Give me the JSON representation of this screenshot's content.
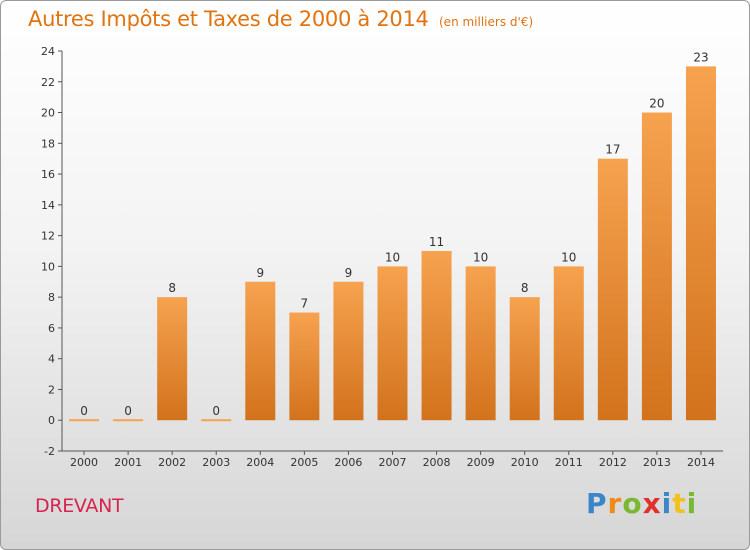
{
  "header": {
    "title": "Autres Impôts et Taxes de 2000 à 2014",
    "subtitle": "(en milliers d'€)"
  },
  "footer": {
    "commune": "DREVANT",
    "brand": [
      "P",
      "r",
      "o",
      "x",
      "i",
      "t",
      "i"
    ]
  },
  "colors": {
    "bar_top": "#f6a24f",
    "bar_bottom": "#d2721c",
    "title": "#e07410",
    "commune": "#d8234e"
  },
  "chart_data": {
    "type": "bar",
    "title": "Autres Impôts et Taxes de 2000 à 2014",
    "subtitle": "(en milliers d'€)",
    "categories": [
      "2000",
      "2001",
      "2002",
      "2003",
      "2004",
      "2005",
      "2006",
      "2007",
      "2008",
      "2009",
      "2010",
      "2011",
      "2012",
      "2013",
      "2014"
    ],
    "values": [
      0,
      0,
      8,
      0,
      9,
      7,
      9,
      10,
      11,
      10,
      8,
      10,
      17,
      20,
      23
    ],
    "ylim": [
      -2,
      24
    ],
    "yticks": [
      -2,
      0,
      2,
      4,
      6,
      8,
      10,
      12,
      14,
      16,
      18,
      20,
      22,
      24
    ],
    "grid": false
  }
}
